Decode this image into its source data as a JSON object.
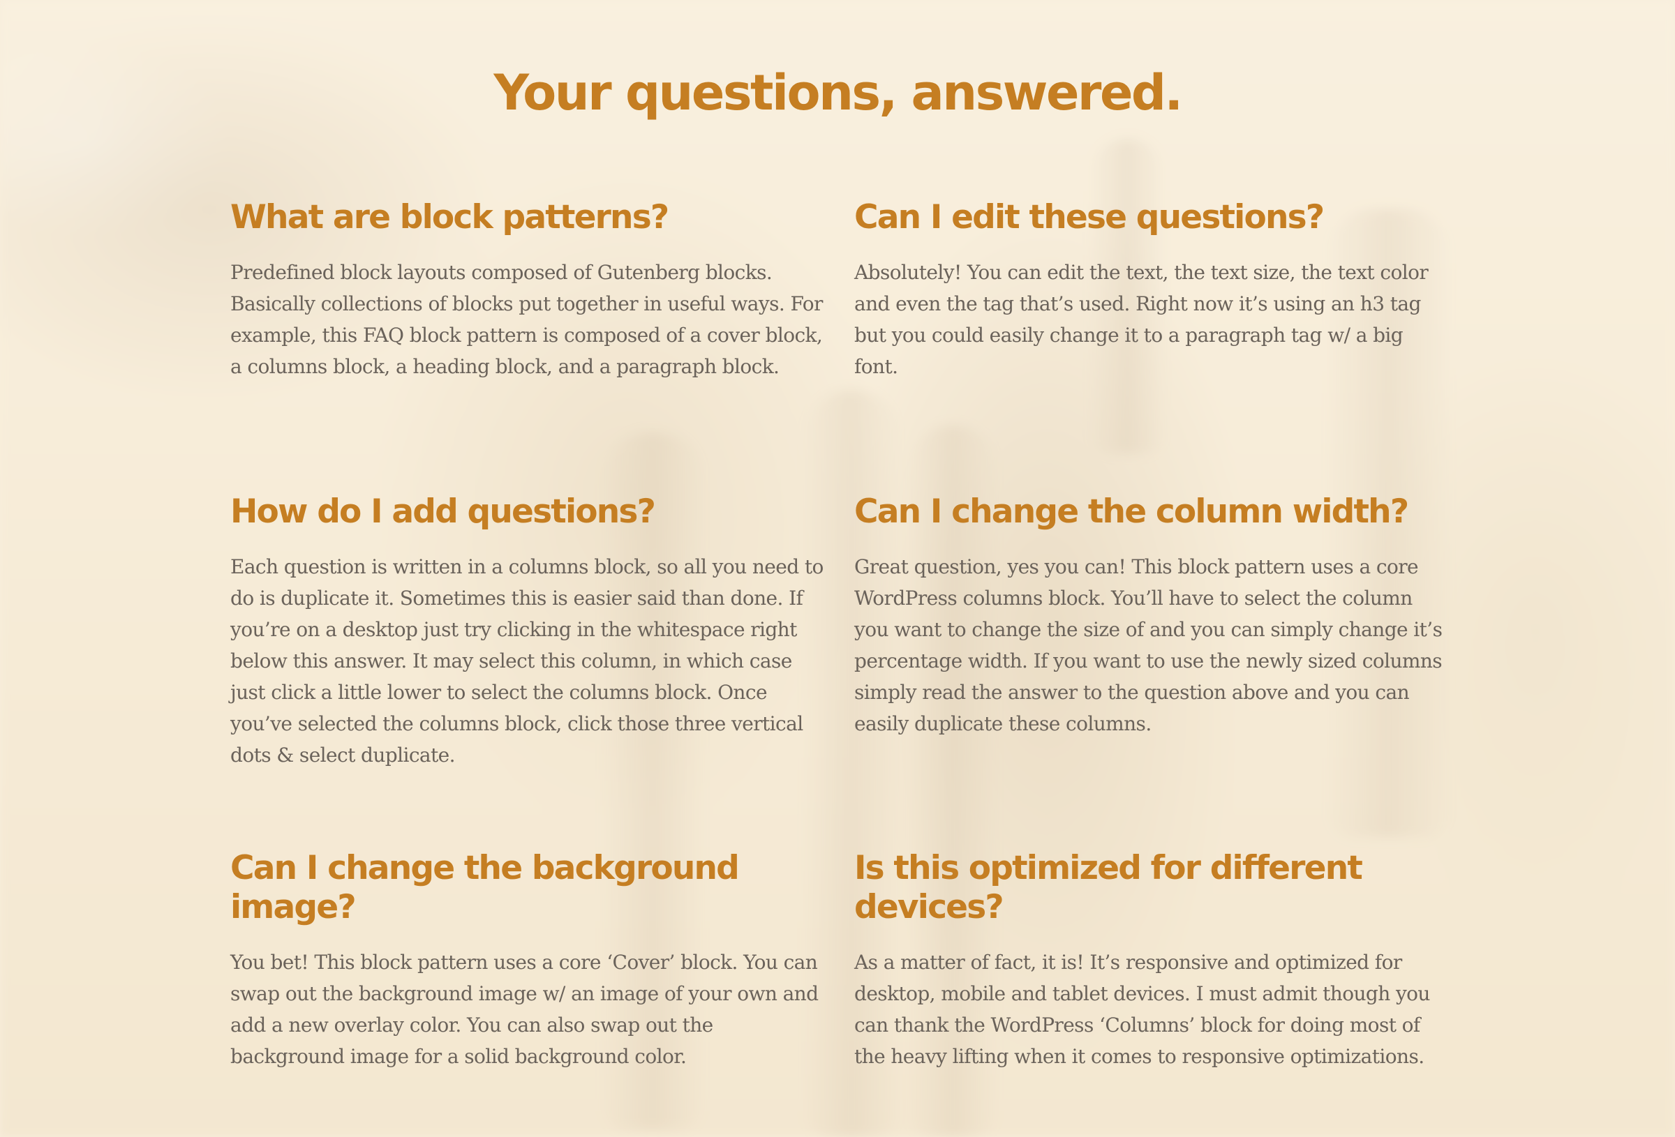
{
  "page": {
    "title": "Your questions, answered."
  },
  "colors": {
    "heading": "#c57e22",
    "body_text": "#6a625a",
    "overlay": "#f6ecda"
  },
  "faq": [
    {
      "question": "What are block patterns?",
      "answer": "Predefined block layouts composed of Gutenberg blocks. Basically collections of blocks put together in useful ways. For example, this FAQ block pattern is composed of a cover block, a columns block, a heading block, and a paragraph block."
    },
    {
      "question": "Can I edit these questions?",
      "answer": "Absolutely! You can edit the text, the text size, the text color and even the tag that’s used. Right now it’s using an h3 tag but you could easily change it to a paragraph tag w/ a big font."
    },
    {
      "question": "How do I add questions?",
      "answer": "Each question is written in a columns block, so all you need to do is duplicate it. Sometimes this is easier said than done. If you’re on a desktop just try clicking in the whitespace right below this answer. It may select this column, in which case just click a little lower to select the columns block. Once you’ve selected the columns block, click those three vertical dots & select duplicate."
    },
    {
      "question": "Can I change the column width?",
      "answer": "Great question, yes you can! This block pattern uses a core WordPress columns block. You’ll have to select the column you want to change the size of and you can simply change it’s percentage width. If you want to use the newly sized columns simply read the answer to the question above and you can easily duplicate these columns."
    },
    {
      "question": "Can I change the background image?",
      "answer": "You bet! This block pattern uses a core ‘Cover’ block. You can swap out the background image w/ an image of your own and add a new overlay color. You can also swap out the background image for a solid background color."
    },
    {
      "question": "Is this optimized for different devices?",
      "answer": "As a matter of fact, it is! It’s responsive and optimized for desktop, mobile and tablet devices. I must admit though you can thank the WordPress ‘Columns’ block for doing most of the heavy lifting when it comes to responsive optimizations."
    }
  ]
}
